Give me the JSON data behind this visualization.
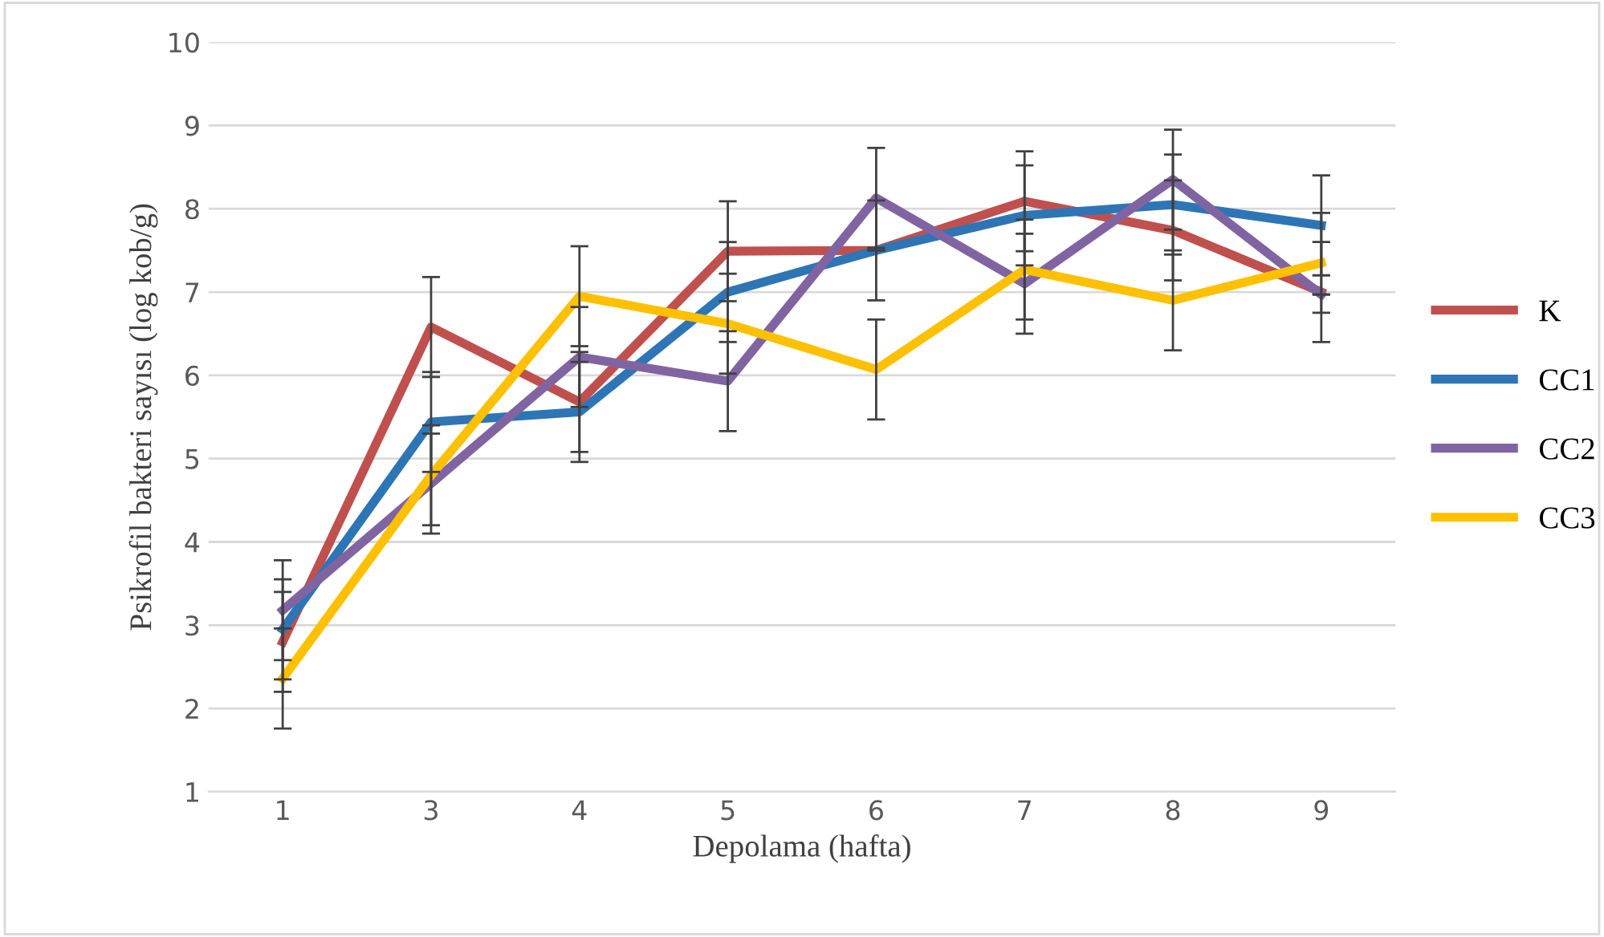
{
  "chart_data": {
    "type": "line",
    "xlabel": "Depolama (hafta)",
    "ylabel": "Psikrofil bakteri sayısı (log kob/g)",
    "categories": [
      "1",
      "3",
      "4",
      "5",
      "6",
      "7",
      "8",
      "9"
    ],
    "ylim": [
      1,
      10
    ],
    "yticks": [
      1,
      2,
      3,
      4,
      5,
      6,
      7,
      8,
      9,
      10
    ],
    "grid": "y",
    "legend": "right",
    "marker": "none",
    "line_style": "solid",
    "series": [
      {
        "name": "K",
        "color": "#c0504d",
        "values": [
          2.8,
          6.58,
          5.68,
          7.49,
          7.5,
          8.09,
          7.74,
          7.0
        ],
        "errors": [
          0.6,
          0.6,
          0.6,
          0.6,
          0.6,
          0.6,
          0.6,
          0.6
        ]
      },
      {
        "name": "CC1",
        "color": "#2e75b6",
        "values": [
          2.95,
          5.44,
          5.56,
          7.0,
          7.5,
          7.92,
          8.05,
          7.8
        ],
        "errors": [
          0.6,
          0.6,
          0.6,
          0.6,
          null,
          0.6,
          0.6,
          0.6
        ]
      },
      {
        "name": "CC2",
        "color": "#8064a2",
        "values": [
          3.18,
          4.7,
          6.22,
          5.93,
          8.13,
          7.1,
          8.35,
          6.97
        ],
        "errors": [
          0.6,
          0.6,
          0.6,
          0.6,
          0.6,
          0.6,
          0.6,
          null
        ]
      },
      {
        "name": "CC3",
        "color": "#ffc000",
        "values": [
          2.36,
          4.8,
          6.95,
          6.62,
          6.07,
          7.27,
          6.9,
          7.35
        ],
        "errors": [
          0.6,
          0.6,
          0.6,
          0.6,
          0.6,
          0.6,
          0.6,
          0.6
        ]
      }
    ]
  }
}
